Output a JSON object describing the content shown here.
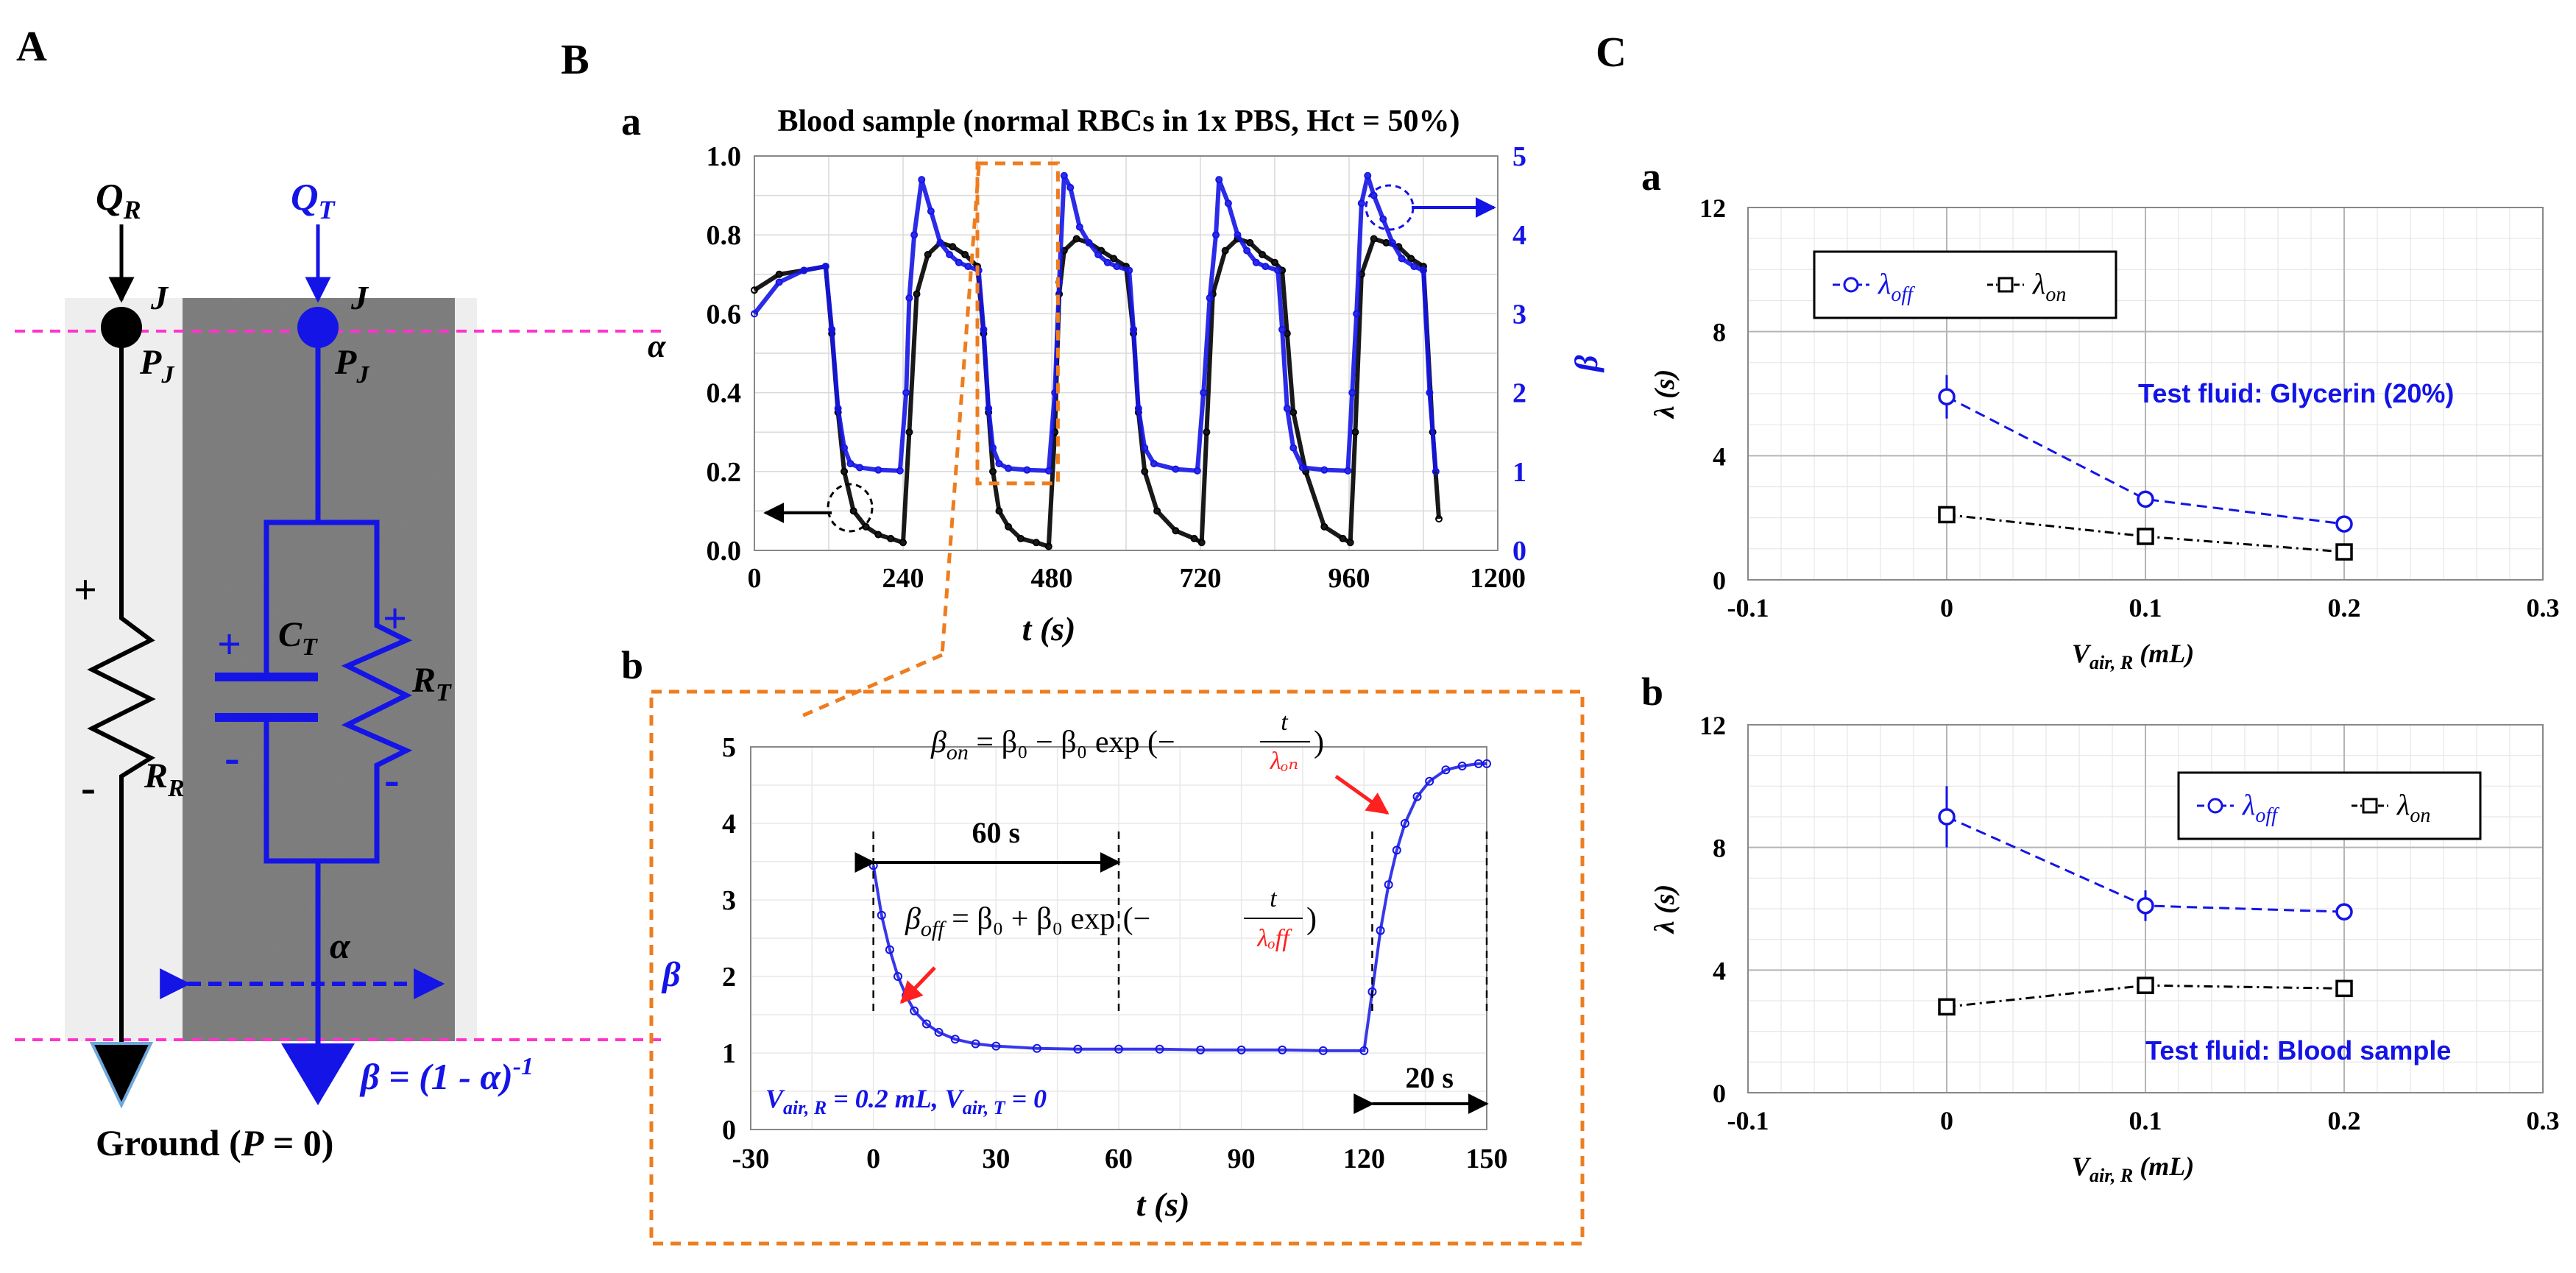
{
  "panels": {
    "A": "A",
    "B": "B",
    "C": "C",
    "a": "a",
    "b": "b"
  },
  "colors": {
    "blue": "#1414e6",
    "black": "#000000",
    "magenta": "#ff33cc",
    "orange": "#ee7d1f",
    "red": "#ff2020",
    "grid": "#d9d9d9",
    "tube_gray": "#6e6e6e",
    "light_gray": "#eeeeee"
  },
  "circuit": {
    "QR_main": "Q",
    "QR_sub": "R",
    "QT_main": "Q",
    "QT_sub": "T",
    "J_label": "J",
    "PJ_main": "P",
    "PJ_sub": "J",
    "plus": "+",
    "minus": "-",
    "RR_main": "R",
    "RR_sub": "R",
    "CT_main": "C",
    "CT_sub": "T",
    "RT_main": "R",
    "RT_sub": "T",
    "alpha": "α",
    "beta_eq_main": "β = (1 - α)",
    "beta_eq_sup": "-1",
    "ground_pre": "Ground (",
    "ground_P": "P",
    "ground_post": " = 0)"
  },
  "chart_data": [
    {
      "id": "B-a",
      "type": "scatter",
      "title": "Blood sample (normal RBCs in 1x PBS, Hct = 50%)",
      "xlabel": "t (s)",
      "ylabel_left": "α",
      "ylabel_right": "β",
      "xlim": [
        0,
        1200
      ],
      "ylim_left": [
        0.0,
        1.0
      ],
      "ylim_right": [
        0,
        5
      ],
      "x_ticks": [
        "0",
        "240",
        "480",
        "720",
        "960",
        "1200"
      ],
      "y_ticks_left": [
        "0.0",
        "0.2",
        "0.4",
        "0.6",
        "0.8",
        "1.0"
      ],
      "y_ticks_right": [
        "0",
        "1",
        "2",
        "3",
        "4",
        "5"
      ],
      "series": [
        {
          "name": "α",
          "axis": "left",
          "color": "#000000",
          "x": [
            0,
            40,
            80,
            115,
            125,
            135,
            145,
            160,
            180,
            200,
            220,
            240,
            250,
            262,
            280,
            300,
            320,
            340,
            360,
            370,
            378,
            385,
            395,
            410,
            430,
            455,
            475,
            485,
            492,
            500,
            520,
            540,
            560,
            580,
            600,
            612,
            620,
            630,
            650,
            680,
            710,
            722,
            730,
            740,
            760,
            780,
            800,
            820,
            840,
            852,
            860,
            870,
            890,
            920,
            950,
            962,
            970,
            980,
            1000,
            1020,
            1040,
            1060,
            1080,
            1095,
            1105
          ],
          "y": [
            0.66,
            0.7,
            0.71,
            0.72,
            0.55,
            0.35,
            0.2,
            0.1,
            0.06,
            0.04,
            0.03,
            0.02,
            0.3,
            0.65,
            0.75,
            0.78,
            0.77,
            0.75,
            0.72,
            0.55,
            0.35,
            0.2,
            0.1,
            0.06,
            0.03,
            0.02,
            0.01,
            0.3,
            0.65,
            0.76,
            0.79,
            0.78,
            0.76,
            0.74,
            0.72,
            0.55,
            0.35,
            0.2,
            0.1,
            0.05,
            0.03,
            0.02,
            0.3,
            0.65,
            0.76,
            0.79,
            0.78,
            0.75,
            0.73,
            0.71,
            0.55,
            0.35,
            0.2,
            0.06,
            0.03,
            0.02,
            0.3,
            0.7,
            0.79,
            0.78,
            0.77,
            0.74,
            0.72,
            0.3,
            0.08
          ]
        },
        {
          "name": "β",
          "axis": "right",
          "color": "#1414e6",
          "x": [
            0,
            40,
            80,
            115,
            125,
            135,
            145,
            155,
            170,
            200,
            235,
            245,
            250,
            258,
            270,
            285,
            300,
            315,
            330,
            345,
            362,
            370,
            378,
            385,
            395,
            410,
            440,
            475,
            485,
            492,
            500,
            510,
            525,
            540,
            555,
            570,
            585,
            605,
            612,
            620,
            630,
            645,
            680,
            715,
            725,
            735,
            745,
            750,
            765,
            780,
            795,
            810,
            825,
            845,
            852,
            860,
            870,
            885,
            920,
            958,
            965,
            972,
            980,
            990,
            1000,
            1015,
            1030,
            1045,
            1065,
            1080,
            1090,
            1100
          ],
          "y": [
            3.0,
            3.4,
            3.55,
            3.6,
            2.8,
            1.8,
            1.3,
            1.1,
            1.05,
            1.02,
            1.01,
            2.0,
            3.2,
            4.0,
            4.7,
            4.3,
            3.9,
            3.75,
            3.65,
            3.6,
            3.55,
            2.8,
            1.8,
            1.3,
            1.1,
            1.04,
            1.02,
            1.01,
            2.0,
            3.4,
            4.75,
            4.6,
            4.1,
            3.9,
            3.75,
            3.65,
            3.6,
            3.55,
            2.8,
            1.8,
            1.3,
            1.1,
            1.03,
            1.01,
            2.0,
            3.2,
            4.0,
            4.7,
            4.4,
            4.0,
            3.8,
            3.65,
            3.6,
            3.55,
            2.8,
            1.8,
            1.3,
            1.05,
            1.02,
            1.01,
            2.0,
            3.0,
            4.4,
            4.75,
            4.5,
            4.2,
            3.9,
            3.7,
            3.6,
            3.55,
            2.0,
            1.0
          ]
        }
      ],
      "annotations": [
        "left arrow from circle near α trough",
        "right arrow from circle near β peak",
        "dashed orange box around 360–490 s"
      ]
    },
    {
      "id": "B-b",
      "type": "scatter",
      "xlabel": "t (s)",
      "ylabel": "β",
      "xlim": [
        -30,
        150
      ],
      "ylim": [
        0,
        5
      ],
      "x_ticks": [
        "-30",
        "0",
        "30",
        "60",
        "90",
        "120",
        "150"
      ],
      "y_ticks": [
        "0",
        "1",
        "2",
        "3",
        "4",
        "5"
      ],
      "series": [
        {
          "name": "β",
          "color": "#1414e6",
          "x": [
            0,
            2,
            4,
            6,
            8,
            10,
            13,
            16,
            20,
            25,
            30,
            40,
            50,
            60,
            70,
            80,
            90,
            100,
            110,
            120,
            122,
            124,
            126,
            128,
            130,
            133,
            136,
            140,
            144,
            148,
            150
          ],
          "y": [
            3.45,
            2.8,
            2.35,
            2.0,
            1.75,
            1.55,
            1.38,
            1.27,
            1.18,
            1.12,
            1.09,
            1.06,
            1.05,
            1.05,
            1.05,
            1.04,
            1.04,
            1.04,
            1.03,
            1.03,
            1.8,
            2.6,
            3.2,
            3.65,
            4.0,
            4.35,
            4.55,
            4.7,
            4.75,
            4.78,
            4.78
          ]
        }
      ],
      "eq_on_lhs": "β",
      "eq_on_sub": "on",
      "eq_on_rhs": " = β₀ − β₀ exp (−",
      "eq_on_num": "t",
      "eq_on_den": "λₒₙ",
      "eq_off_lhs": "β",
      "eq_off_sub": "off",
      "eq_off_rhs": " = β₀ + β₀ exp (−",
      "eq_off_num": "t",
      "eq_off_den": "λₒff",
      "eq_close": ")",
      "label_60s": "60 s",
      "label_20s": "20 s",
      "cond_main": "V",
      "cond_sub": "air, R",
      "cond_mid": " = 0.2 mL, V",
      "cond_sub2": "air, T",
      "cond_end": " = 0"
    },
    {
      "id": "C-a",
      "type": "line",
      "xlabel_main": "V",
      "xlabel_sub": "air, R",
      "xlabel_unit": " (mL)",
      "ylabel": "λ (s)",
      "xlim": [
        -0.1,
        0.3
      ],
      "ylim": [
        0,
        12
      ],
      "x_ticks": [
        "-0.1",
        "0",
        "0.1",
        "0.2",
        "0.3"
      ],
      "y_ticks": [
        "0",
        "4",
        "8",
        "12"
      ],
      "series": [
        {
          "name": "λoff",
          "sym": "λ",
          "sub": "off",
          "color": "#1414e6",
          "marker": "circle",
          "x": [
            0,
            0.1,
            0.2
          ],
          "y": [
            5.9,
            2.6,
            1.8
          ],
          "err": [
            0.7,
            0.2,
            0.15
          ]
        },
        {
          "name": "λon",
          "sym": "λ",
          "sub": "on",
          "color": "#000000",
          "marker": "square",
          "x": [
            0,
            0.1,
            0.2
          ],
          "y": [
            2.1,
            1.4,
            0.9
          ],
          "err": [
            0.15,
            0.15,
            0.1
          ]
        }
      ],
      "annotation": "Test fluid: Glycerin (20%)"
    },
    {
      "id": "C-b",
      "type": "line",
      "xlabel_main": "V",
      "xlabel_sub": "air, R",
      "xlabel_unit": " (mL)",
      "ylabel": "λ (s)",
      "xlim": [
        -0.1,
        0.3
      ],
      "ylim": [
        0,
        12
      ],
      "x_ticks": [
        "-0.1",
        "0",
        "0.1",
        "0.2",
        "0.3"
      ],
      "y_ticks": [
        "0",
        "4",
        "8",
        "12"
      ],
      "series": [
        {
          "name": "λoff",
          "sym": "λ",
          "sub": "off",
          "color": "#1414e6",
          "marker": "circle",
          "x": [
            0,
            0.1,
            0.2
          ],
          "y": [
            9.0,
            6.1,
            5.9
          ],
          "err": [
            1.0,
            0.5,
            0.15
          ]
        },
        {
          "name": "λon",
          "sym": "λ",
          "sub": "on",
          "color": "#000000",
          "marker": "square",
          "x": [
            0,
            0.1,
            0.2
          ],
          "y": [
            2.8,
            3.5,
            3.4
          ],
          "err": [
            0.2,
            0.2,
            0.15
          ]
        }
      ],
      "annotation": "Test fluid: Blood sample"
    }
  ]
}
